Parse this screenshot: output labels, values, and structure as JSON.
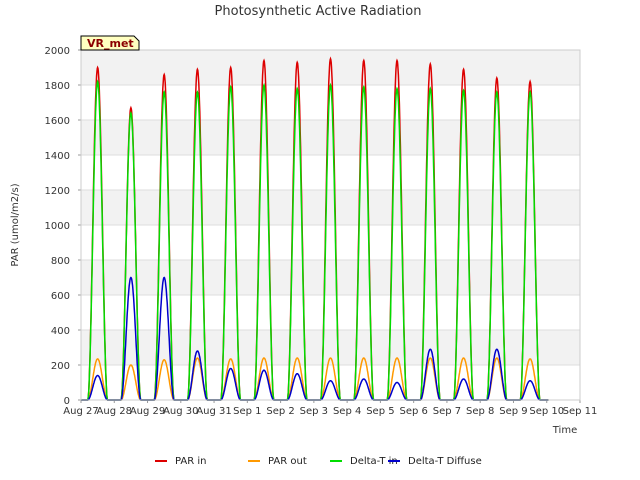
{
  "chart_data": {
    "type": "line",
    "title": "Photosynthetic Active Radiation",
    "xlabel": "Time",
    "ylabel": "PAR (umol/m2/s)",
    "ylim": [
      0,
      2000
    ],
    "xlim": [
      0,
      15
    ],
    "yticks": [
      0,
      200,
      400,
      600,
      800,
      1000,
      1200,
      1400,
      1600,
      1800,
      2000
    ],
    "xtick_labels": [
      "Aug 27",
      "Aug 28",
      "Aug 29",
      "Aug 30",
      "Aug 31",
      "Sep 1",
      "Sep 2",
      "Sep 3",
      "Sep 4",
      "Sep 5",
      "Sep 6",
      "Sep 7",
      "Sep 8",
      "Sep 9",
      "Sep 10",
      "Sep 11"
    ],
    "site_label": "VR_met",
    "legend_position": "bottom",
    "day_centers": [
      0.5,
      1.5,
      2.5,
      3.5,
      4.5,
      5.5,
      6.5,
      7.5,
      8.5,
      9.5,
      10.5,
      11.5,
      12.5,
      13.5
    ],
    "series": [
      {
        "name": "PAR in",
        "color": "#dd0000",
        "daily_peaks": [
          1900,
          1670,
          1860,
          1890,
          1900,
          1940,
          1930,
          1950,
          1940,
          1940,
          1920,
          1890,
          1840,
          1820
        ]
      },
      {
        "name": "PAR out",
        "color": "#ff9900",
        "daily_peaks": [
          235,
          200,
          230,
          240,
          235,
          240,
          240,
          240,
          240,
          240,
          240,
          240,
          240,
          235
        ]
      },
      {
        "name": "Delta-T in",
        "color": "#00dd00",
        "daily_peaks": [
          1820,
          1640,
          1760,
          1760,
          1790,
          1800,
          1780,
          1800,
          1790,
          1780,
          1780,
          1770,
          1760,
          1760
        ]
      },
      {
        "name": "Delta-T Diffuse",
        "color": "#0000cc",
        "daily_peaks": [
          140,
          700,
          700,
          280,
          180,
          170,
          150,
          110,
          120,
          100,
          290,
          120,
          290,
          110
        ]
      }
    ]
  }
}
